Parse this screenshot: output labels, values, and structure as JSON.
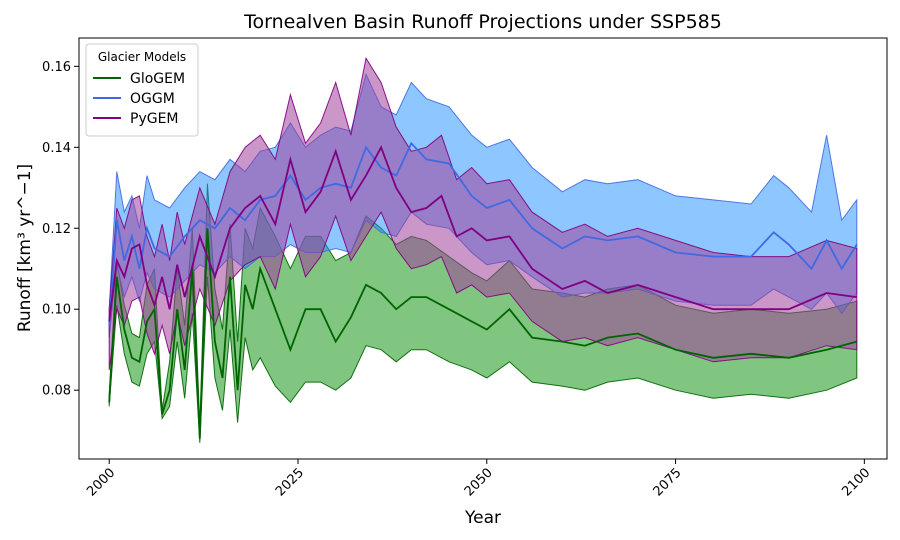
{
  "chart_data": {
    "type": "line",
    "title": "Tornealven Basin Runoff Projections under SSP585",
    "xlabel": "Year",
    "ylabel": "Runoff [km³ yr^−1]",
    "xlim": [
      1996,
      2103
    ],
    "ylim": [
      0.063,
      0.167
    ],
    "x_ticks": [
      2000,
      2025,
      2050,
      2075,
      2100
    ],
    "x_tick_labels": [
      "2000",
      "2025",
      "2050",
      "2075",
      "2100"
    ],
    "y_ticks": [
      0.08,
      0.1,
      0.12,
      0.14,
      0.16
    ],
    "y_tick_labels": [
      "0.08",
      "0.10",
      "0.12",
      "0.14",
      "0.16"
    ],
    "grid": false,
    "legend": {
      "title": "Glacier Models",
      "position": "top-left"
    },
    "x_start": 2000,
    "x_end": 2099,
    "series": [
      {
        "name": "GloGEM",
        "color": "#006400",
        "fill_color": "#2ca02c",
        "key_years": [
          2000,
          2001,
          2002,
          2003,
          2004,
          2005,
          2006,
          2007,
          2008,
          2009,
          2010,
          2011,
          2012,
          2013,
          2014,
          2015,
          2016,
          2017,
          2018,
          2019,
          2020,
          2022,
          2024,
          2026,
          2028,
          2030,
          2032,
          2034,
          2036,
          2038,
          2040,
          2042,
          2045,
          2048,
          2050,
          2053,
          2056,
          2060,
          2063,
          2066,
          2070,
          2075,
          2080,
          2085,
          2090,
          2095,
          2099
        ],
        "values": [
          0.077,
          0.108,
          0.095,
          0.088,
          0.087,
          0.097,
          0.1,
          0.074,
          0.08,
          0.1,
          0.085,
          0.11,
          0.068,
          0.12,
          0.092,
          0.083,
          0.108,
          0.08,
          0.106,
          0.1,
          0.11,
          0.1,
          0.09,
          0.1,
          0.1,
          0.092,
          0.098,
          0.106,
          0.104,
          0.1,
          0.103,
          0.103,
          0.1,
          0.097,
          0.095,
          0.1,
          0.093,
          0.092,
          0.091,
          0.093,
          0.094,
          0.09,
          0.088,
          0.089,
          0.088,
          0.09,
          0.092
        ],
        "lower": [
          0.076,
          0.101,
          0.089,
          0.082,
          0.081,
          0.089,
          0.092,
          0.073,
          0.076,
          0.092,
          0.078,
          0.099,
          0.067,
          0.108,
          0.083,
          0.075,
          0.095,
          0.072,
          0.093,
          0.085,
          0.088,
          0.081,
          0.077,
          0.082,
          0.082,
          0.08,
          0.083,
          0.091,
          0.09,
          0.087,
          0.09,
          0.09,
          0.087,
          0.085,
          0.083,
          0.087,
          0.082,
          0.081,
          0.08,
          0.082,
          0.083,
          0.08,
          0.078,
          0.079,
          0.078,
          0.08,
          0.083
        ],
        "upper": [
          0.079,
          0.112,
          0.101,
          0.094,
          0.093,
          0.106,
          0.11,
          0.075,
          0.087,
          0.11,
          0.096,
          0.12,
          0.071,
          0.131,
          0.105,
          0.095,
          0.121,
          0.092,
          0.12,
          0.115,
          0.125,
          0.118,
          0.11,
          0.118,
          0.118,
          0.112,
          0.114,
          0.123,
          0.12,
          0.116,
          0.118,
          0.117,
          0.113,
          0.109,
          0.107,
          0.112,
          0.105,
          0.104,
          0.103,
          0.105,
          0.106,
          0.101,
          0.099,
          0.1,
          0.099,
          0.1,
          0.102
        ]
      },
      {
        "name": "OGGM",
        "color": "#4169e1",
        "fill_color": "#1e90ff",
        "key_years": [
          2000,
          2001,
          2002,
          2003,
          2004,
          2005,
          2006,
          2008,
          2010,
          2012,
          2014,
          2016,
          2018,
          2020,
          2022,
          2024,
          2026,
          2028,
          2030,
          2032,
          2034,
          2036,
          2038,
          2040,
          2042,
          2045,
          2048,
          2050,
          2053,
          2056,
          2060,
          2063,
          2066,
          2070,
          2075,
          2080,
          2085,
          2088,
          2090,
          2093,
          2095,
          2097,
          2099
        ],
        "values": [
          0.096,
          0.122,
          0.112,
          0.118,
          0.11,
          0.12,
          0.115,
          0.113,
          0.118,
          0.122,
          0.12,
          0.125,
          0.122,
          0.127,
          0.128,
          0.133,
          0.127,
          0.13,
          0.131,
          0.13,
          0.14,
          0.135,
          0.133,
          0.141,
          0.137,
          0.136,
          0.128,
          0.125,
          0.127,
          0.12,
          0.115,
          0.118,
          0.117,
          0.118,
          0.114,
          0.113,
          0.113,
          0.119,
          0.116,
          0.11,
          0.117,
          0.11,
          0.116
        ],
        "lower": [
          0.093,
          0.111,
          0.103,
          0.108,
          0.102,
          0.109,
          0.105,
          0.103,
          0.107,
          0.111,
          0.109,
          0.113,
          0.11,
          0.113,
          0.113,
          0.116,
          0.114,
          0.114,
          0.115,
          0.114,
          0.122,
          0.119,
          0.118,
          0.124,
          0.121,
          0.12,
          0.114,
          0.111,
          0.112,
          0.108,
          0.103,
          0.104,
          0.104,
          0.105,
          0.102,
          0.101,
          0.101,
          0.105,
          0.103,
          0.1,
          0.104,
          0.099,
          0.104
        ],
        "upper": [
          0.1,
          0.134,
          0.124,
          0.128,
          0.12,
          0.133,
          0.127,
          0.125,
          0.13,
          0.134,
          0.132,
          0.137,
          0.134,
          0.139,
          0.14,
          0.146,
          0.14,
          0.143,
          0.145,
          0.144,
          0.158,
          0.15,
          0.148,
          0.156,
          0.152,
          0.15,
          0.143,
          0.14,
          0.142,
          0.135,
          0.129,
          0.132,
          0.131,
          0.132,
          0.128,
          0.127,
          0.126,
          0.133,
          0.13,
          0.124,
          0.143,
          0.122,
          0.127
        ]
      },
      {
        "name": "PyGEM",
        "color": "#800080",
        "fill_color": "#a0409a",
        "key_years": [
          2000,
          2001,
          2002,
          2003,
          2004,
          2005,
          2006,
          2007,
          2008,
          2009,
          2010,
          2012,
          2014,
          2016,
          2018,
          2020,
          2022,
          2024,
          2026,
          2028,
          2030,
          2032,
          2034,
          2036,
          2038,
          2040,
          2042,
          2044,
          2046,
          2048,
          2050,
          2053,
          2056,
          2060,
          2063,
          2066,
          2070,
          2075,
          2080,
          2085,
          2090,
          2095,
          2099
        ],
        "values": [
          0.097,
          0.112,
          0.108,
          0.115,
          0.116,
          0.106,
          0.101,
          0.108,
          0.1,
          0.111,
          0.103,
          0.118,
          0.108,
          0.12,
          0.125,
          0.128,
          0.121,
          0.137,
          0.124,
          0.129,
          0.139,
          0.127,
          0.133,
          0.14,
          0.13,
          0.124,
          0.125,
          0.128,
          0.118,
          0.12,
          0.117,
          0.118,
          0.11,
          0.105,
          0.107,
          0.104,
          0.106,
          0.103,
          0.1,
          0.1,
          0.1,
          0.104,
          0.103
        ],
        "lower": [
          0.085,
          0.1,
          0.096,
          0.102,
          0.103,
          0.094,
          0.089,
          0.096,
          0.089,
          0.099,
          0.091,
          0.105,
          0.096,
          0.107,
          0.111,
          0.113,
          0.105,
          0.121,
          0.108,
          0.113,
          0.123,
          0.112,
          0.118,
          0.124,
          0.115,
          0.11,
          0.111,
          0.113,
          0.104,
          0.106,
          0.103,
          0.104,
          0.097,
          0.092,
          0.093,
          0.091,
          0.093,
          0.09,
          0.087,
          0.088,
          0.088,
          0.091,
          0.09
        ],
        "upper": [
          0.1,
          0.125,
          0.12,
          0.127,
          0.128,
          0.118,
          0.113,
          0.121,
          0.112,
          0.124,
          0.116,
          0.13,
          0.121,
          0.134,
          0.14,
          0.143,
          0.137,
          0.153,
          0.141,
          0.146,
          0.156,
          0.143,
          0.162,
          0.156,
          0.145,
          0.139,
          0.14,
          0.143,
          0.132,
          0.135,
          0.131,
          0.132,
          0.124,
          0.119,
          0.121,
          0.118,
          0.12,
          0.117,
          0.114,
          0.113,
          0.113,
          0.117,
          0.115
        ]
      }
    ]
  }
}
